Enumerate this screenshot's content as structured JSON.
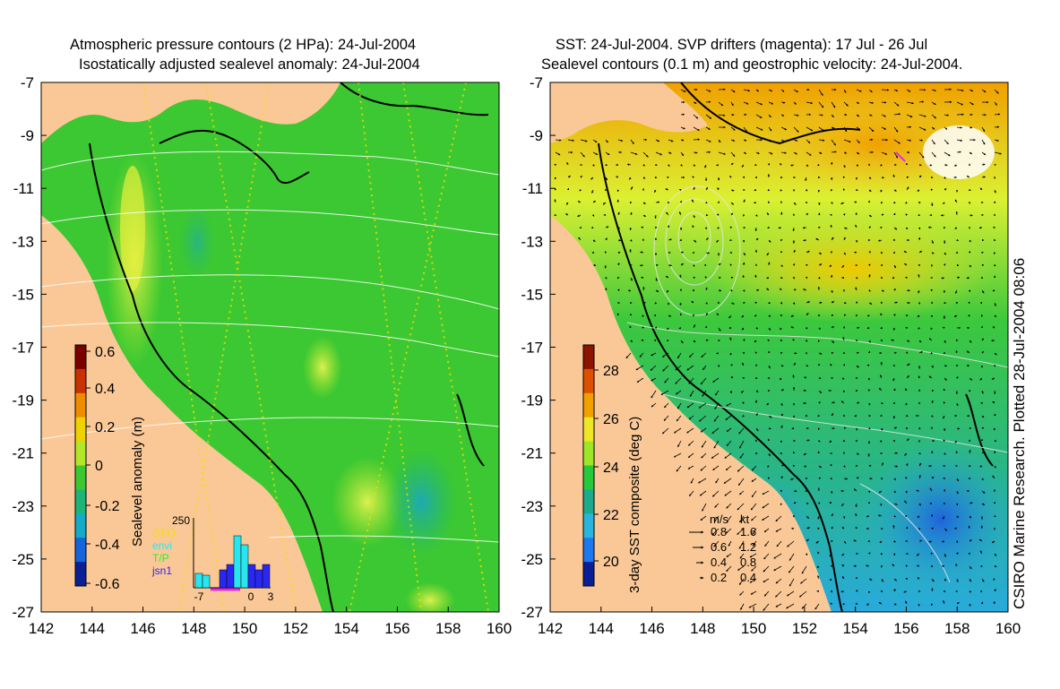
{
  "left_panel": {
    "title_line1": "Atmospheric pressure contours (2 HPa): 24-Jul-2004",
    "title_line2": "Isostatically adjusted sealevel anomaly: 24-Jul-2004",
    "x_ticks": [
      "142",
      "144",
      "146",
      "148",
      "150",
      "152",
      "154",
      "156",
      "158",
      "160"
    ],
    "y_ticks": [
      "-7",
      "-9",
      "-11",
      "-13",
      "-15",
      "-17",
      "-19",
      "-21",
      "-23",
      "-25",
      "-27"
    ],
    "colorbar": {
      "label": "Sealevel anomaly (m)",
      "ticks": [
        "0.6",
        "0.4",
        "0.2",
        "0",
        "-0.2",
        "-0.4",
        "-0.6"
      ],
      "colors": [
        "#7a0000",
        "#c83200",
        "#f08c00",
        "#f0d200",
        "#b4e628",
        "#3cc832",
        "#1eb478",
        "#14aac8",
        "#1464dc",
        "#0a1e96"
      ]
    },
    "histogram": {
      "y_max": "250",
      "legend": [
        {
          "label": "GFO",
          "color": "#f0e000"
        },
        {
          "label": "envi",
          "color": "#28e6f0"
        },
        {
          "label": "T/P",
          "color": "#28f028"
        },
        {
          "label": "jsn1",
          "color": "#2a28f0"
        }
      ],
      "x_ticks": [
        "-7",
        "0",
        "3"
      ]
    }
  },
  "right_panel": {
    "title_line1": "SST: 24-Jul-2004. SVP drifters (magenta): 17 Jul - 26 Jul",
    "title_line2": "Sealevel contours (0.1 m) and geostrophic velocity: 24-Jul-2004.",
    "x_ticks": [
      "142",
      "144",
      "146",
      "148",
      "150",
      "152",
      "154",
      "156",
      "158",
      "160"
    ],
    "y_ticks": [
      "-7",
      "-9",
      "-11",
      "-13",
      "-15",
      "-17",
      "-19",
      "-21",
      "-23",
      "-25",
      "-27"
    ],
    "colorbar": {
      "label": "3-day SST composite (deg C)",
      "ticks": [
        "28",
        "26",
        "24",
        "22",
        "20"
      ],
      "colors": [
        "#8c1400",
        "#dc5000",
        "#f0a000",
        "#f0e628",
        "#a0e628",
        "#28c83c",
        "#1eaa8c",
        "#28b4dc",
        "#1e78f0",
        "#0a1e96"
      ]
    },
    "velocity_legend": {
      "units": [
        "m/s",
        "kt"
      ],
      "rows": [
        {
          "ms": "0.8",
          "kt": "1.6"
        },
        {
          "ms": "0.6",
          "kt": "1.2"
        },
        {
          "ms": "0.4",
          "kt": "0.8"
        },
        {
          "ms": "0.2",
          "kt": "0.4"
        }
      ]
    }
  },
  "credit": "CSIRO Marine Research. Plotted 28-Jul-2004 08:06",
  "colors": {
    "land": "#fac896",
    "sea_level_base": "#3cc832",
    "sst_base": "#3cc83c",
    "coastline": "#000000",
    "contour": "#ffffff"
  }
}
